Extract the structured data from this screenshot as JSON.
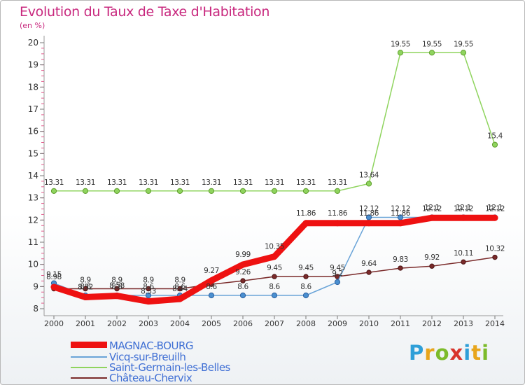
{
  "title": "Evolution du Taux de Taxe d'Habitation",
  "subtitle": "(en %)",
  "brand": {
    "text": "Proxiti",
    "letters": [
      {
        "ch": "P",
        "color": "#2f9fd8"
      },
      {
        "ch": "r",
        "color": "#e8a51c"
      },
      {
        "ch": "o",
        "color": "#7cbb2a"
      },
      {
        "ch": "x",
        "color": "#d8342c"
      },
      {
        "ch": "i",
        "color": "#2f9fd8"
      },
      {
        "ch": "t",
        "color": "#e8a51c"
      },
      {
        "ch": "i",
        "color": "#7cbb2a"
      }
    ]
  },
  "chart_data": {
    "type": "line",
    "x": [
      2000,
      2001,
      2002,
      2003,
      2004,
      2005,
      2006,
      2007,
      2008,
      2009,
      2010,
      2011,
      2012,
      2013,
      2014
    ],
    "ylim": [
      8,
      20
    ],
    "yticks": [
      8,
      9,
      10,
      11,
      12,
      13,
      14,
      15,
      16,
      17,
      18,
      19,
      20
    ],
    "ytick_labels": [
      "8",
      "9",
      "10",
      "11",
      "12",
      "13",
      "14",
      "15",
      "16",
      "17",
      "18",
      "19",
      "20"
    ],
    "grid": false,
    "legend_position": "bottom-left",
    "series": [
      {
        "name": "Saint-Germain-les-Belles",
        "color": "#8fd45e",
        "values": [
          13.31,
          13.31,
          13.31,
          13.31,
          13.31,
          13.31,
          13.31,
          13.31,
          13.31,
          13.31,
          13.64,
          19.55,
          19.55,
          19.55,
          15.4
        ],
        "labels": [
          "13.31",
          "13.31",
          "13.31",
          "13.31",
          "13.31",
          "13.31",
          "13.31",
          "13.31",
          "13.31",
          "13.31",
          "13.64",
          "19.55",
          "19.55",
          "19.55",
          "15.4"
        ]
      },
      {
        "name": "Château-Chervix",
        "color": "#7a2a2a",
        "values": [
          8.9,
          8.9,
          8.9,
          8.9,
          8.9,
          9.1,
          9.26,
          9.45,
          9.45,
          9.45,
          9.64,
          9.83,
          9.92,
          10.11,
          10.32
        ],
        "labels": [
          "",
          "8.9",
          "8.9",
          "8.9",
          "8.9",
          "",
          "9.26",
          "9.45",
          "9.45",
          "9.45",
          "9.64",
          "9.83",
          "9.92",
          "10.11",
          "10.32"
        ]
      },
      {
        "name": "Vicq-sur-Breuilh",
        "color": "#6aa4d8",
        "values": [
          9.15,
          8.6,
          8.6,
          8.6,
          8.6,
          8.6,
          8.6,
          8.6,
          8.6,
          9.2,
          12.12,
          12.12,
          12.12,
          12.12,
          12.12
        ],
        "labels": [
          "9.15",
          "8.6",
          "8.6",
          "8.6",
          "8.6",
          "8.6",
          "8.6",
          "8.6",
          "8.6",
          "9.2",
          "12.12",
          "12.12",
          "12.12",
          "12.12",
          "12.12"
        ]
      },
      {
        "name": "MAGNAC-BOURG",
        "color": "#ee1111",
        "values": [
          8.98,
          8.52,
          8.58,
          8.33,
          8.44,
          9.27,
          9.99,
          10.35,
          11.86,
          11.86,
          11.86,
          11.86,
          12.1,
          12.1,
          12.1
        ],
        "labels": [
          "8.98",
          "8.52",
          "8.58",
          "8.33",
          "8.44",
          "9.27",
          "9.99",
          "10.35",
          "11.86",
          "11.86",
          "11.86",
          "11.86",
          "12.1",
          "12.1",
          "12.1"
        ]
      }
    ]
  }
}
